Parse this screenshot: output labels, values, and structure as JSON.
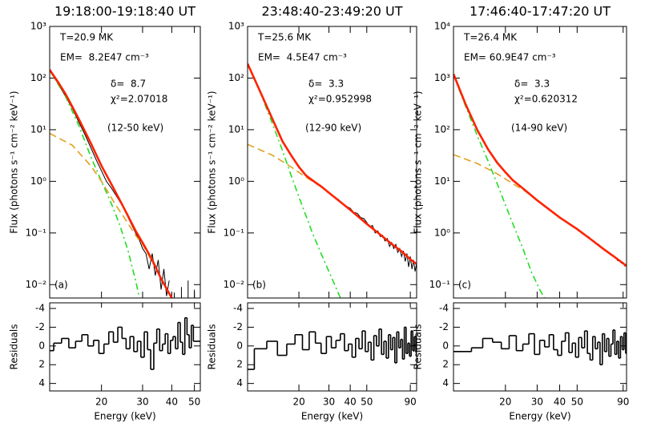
{
  "chart_data": [
    {
      "type": "line",
      "title": "19:18:00-19:18:40 UT",
      "panel_label": "(a)",
      "annotations": [
        "T=20.9 MK",
        "EM=  8.2E47 cm⁻³",
        "δ=  8.7",
        "χ²=2.07018",
        "(12-50 keV)"
      ],
      "ylabel": "Flux (photons s⁻¹ cm⁻² keV⁻¹)",
      "xlabel": "Energy (keV)",
      "log_x": true,
      "log_y": true,
      "xlim": [
        12,
        53
      ],
      "xticks": [
        20,
        30,
        40,
        50
      ],
      "ylim": [
        0.0055,
        1000
      ],
      "yticks": [
        {
          "value": 0.01,
          "label": "10⁻²"
        },
        {
          "value": 0.1,
          "label": "10⁻¹"
        },
        {
          "value": 1,
          "label": "10⁰"
        },
        {
          "value": 10,
          "label": "10¹"
        },
        {
          "value": 100,
          "label": "10²"
        },
        {
          "value": 1000,
          "label": "10³"
        }
      ],
      "series": [
        {
          "color": "#000000",
          "style": "data",
          "x": [
            12,
            13,
            14,
            15,
            16,
            17,
            18,
            19,
            20,
            21,
            22,
            23,
            24,
            25,
            26,
            27,
            28,
            29,
            30,
            31,
            32,
            33,
            34,
            35,
            36,
            37,
            38,
            39,
            40,
            41,
            42,
            43,
            44,
            45,
            46,
            47,
            48,
            49,
            50
          ],
          "values": [
            140,
            80,
            45,
            26,
            14,
            8,
            4.5,
            2.6,
            1.6,
            1.0,
            0.75,
            0.55,
            0.4,
            0.3,
            0.2,
            0.14,
            0.1,
            0.075,
            0.05,
            0.04,
            0.02,
            0.04,
            0.015,
            0.03,
            0.008,
            0.02,
            0.006,
            0.012,
            null,
            0.007,
            null,
            null,
            0.009,
            null,
            null,
            0.012,
            null,
            null,
            0.008
          ]
        },
        {
          "color": "#22dd22",
          "style": "dash-dot",
          "x": [
            12,
            14,
            16,
            18,
            20,
            22,
            24,
            26,
            28,
            29
          ],
          "values": [
            140,
            45,
            12,
            3,
            1.0,
            0.38,
            0.14,
            0.045,
            0.012,
            0.0058
          ]
        },
        {
          "color": "#e0a020",
          "style": "dashed",
          "x": [
            12,
            15,
            18,
            20,
            23,
            25,
            28,
            30,
            35,
            40
          ],
          "values": [
            8.5,
            5,
            2,
            1.0,
            0.35,
            0.2,
            0.09,
            0.06,
            0.017,
            0.0055
          ]
        },
        {
          "color": "#ff2200",
          "style": "total",
          "x": [
            12,
            13,
            14,
            15,
            16,
            18,
            20,
            22,
            25,
            28,
            30,
            33,
            36,
            40
          ],
          "values": [
            145,
            85,
            50,
            28,
            16,
            5.5,
            2.0,
            0.9,
            0.3,
            0.11,
            0.065,
            0.03,
            0.013,
            0.0055
          ]
        }
      ],
      "residuals": {
        "type": "step",
        "ylabel": "Residuals",
        "ylim": [
          4.8,
          -4.6
        ],
        "yticks": [
          -4,
          -2,
          0,
          2,
          4
        ],
        "x": [
          12,
          13,
          14,
          15,
          16,
          17,
          18,
          19,
          20,
          21,
          22,
          23,
          24,
          25,
          26,
          27,
          28,
          29,
          30,
          31,
          32,
          33,
          34,
          35,
          36,
          37,
          38,
          39,
          40,
          41,
          42,
          43,
          44,
          45,
          46,
          47,
          48,
          49,
          50
        ],
        "values": [
          0.5,
          -0.3,
          -0.8,
          0.2,
          -0.5,
          -1.2,
          0.0,
          -0.6,
          0.8,
          -0.2,
          -1.5,
          -0.4,
          -2.0,
          -0.8,
          0.3,
          -1.0,
          0.6,
          -0.5,
          1.2,
          -1.5,
          0.4,
          2.5,
          -0.3,
          -1.8,
          0.5,
          -0.2,
          -1.3,
          0.8,
          -0.6,
          -1.0,
          0.3,
          -2.5,
          -0.4,
          0.9,
          -3.0,
          -1.2,
          0.2,
          -2.2,
          -0.5
        ]
      }
    },
    {
      "type": "line",
      "title": "23:48:40-23:49:20 UT",
      "panel_label": "(b)",
      "annotations": [
        "T=25.6 MK",
        "EM=  4.5E47 cm⁻³",
        "δ=  3.3",
        "χ²=0.952998",
        "(12-90 keV)"
      ],
      "ylabel": "Flux (photons s⁻¹ cm⁻² keV⁻¹)",
      "xlabel": "Energy (keV)",
      "log_x": true,
      "log_y": true,
      "xlim": [
        10,
        98
      ],
      "xticks": [
        20,
        30,
        40,
        50,
        90
      ],
      "ylim": [
        0.0055,
        1000
      ],
      "yticks": [
        {
          "value": 0.01,
          "label": "10⁻²"
        },
        {
          "value": 0.1,
          "label": "10⁻¹"
        },
        {
          "value": 1,
          "label": "10⁰"
        },
        {
          "value": 10,
          "label": "10¹"
        },
        {
          "value": 100,
          "label": "10²"
        },
        {
          "value": 1000,
          "label": "10³"
        }
      ],
      "series": [
        {
          "color": "#000000",
          "style": "data",
          "x": [
            10,
            12,
            14,
            16,
            18,
            20,
            22,
            24,
            26,
            28,
            30,
            32,
            34,
            36,
            38,
            40,
            42,
            44,
            46,
            48,
            50,
            52,
            54,
            56,
            58,
            60,
            62,
            64,
            66,
            68,
            70,
            72,
            74,
            76,
            78,
            80,
            82,
            84,
            86,
            88,
            90,
            92,
            94,
            96,
            98
          ],
          "values": [
            185,
            50,
            16,
            6.2,
            3.1,
            1.9,
            1.35,
            1.05,
            0.85,
            0.72,
            0.6,
            0.5,
            0.45,
            0.37,
            0.33,
            0.3,
            0.25,
            0.24,
            0.2,
            0.19,
            0.16,
            0.13,
            0.14,
            0.1,
            0.11,
            0.085,
            0.09,
            0.07,
            0.078,
            0.055,
            0.065,
            0.05,
            0.06,
            0.042,
            0.05,
            0.035,
            0.045,
            0.028,
            0.04,
            0.022,
            0.035,
            0.02,
            0.03,
            0.018,
            0.026
          ]
        },
        {
          "color": "#22dd22",
          "style": "dash-dot",
          "x": [
            10,
            12,
            14,
            16,
            18,
            20,
            24,
            28,
            32,
            35
          ],
          "values": [
            185,
            48,
            13,
            4,
            1.3,
            0.5,
            0.1,
            0.03,
            0.011,
            0.0055
          ]
        },
        {
          "color": "#e0a020",
          "style": "dashed",
          "x": [
            10,
            14,
            18,
            22,
            26,
            30,
            40,
            60,
            90,
            98
          ],
          "values": [
            5.2,
            3.2,
            1.9,
            1.2,
            0.85,
            0.6,
            0.28,
            0.093,
            0.031,
            0.025
          ]
        },
        {
          "color": "#ff2200",
          "style": "total",
          "x": [
            10,
            12,
            14,
            16,
            18,
            20,
            22,
            25,
            27,
            30,
            35,
            40,
            50,
            60,
            70,
            80,
            90,
            98
          ],
          "values": [
            190,
            50,
            16,
            6,
            3.2,
            1.9,
            1.3,
            0.95,
            0.8,
            0.6,
            0.4,
            0.28,
            0.15,
            0.093,
            0.061,
            0.044,
            0.031,
            0.025
          ]
        }
      ],
      "residuals": {
        "type": "step",
        "ylabel": "Residuals",
        "ylim": [
          4.8,
          -4.6
        ],
        "yticks": [
          -4,
          -2,
          0,
          2,
          4
        ],
        "x": [
          10,
          12,
          14,
          16,
          18,
          20,
          22,
          24,
          26,
          28,
          30,
          32,
          34,
          36,
          38,
          40,
          42,
          44,
          46,
          48,
          50,
          52,
          54,
          56,
          58,
          60,
          62,
          64,
          66,
          68,
          70,
          72,
          74,
          76,
          78,
          80,
          82,
          84,
          86,
          88,
          90,
          92,
          94,
          96,
          98
        ],
        "values": [
          2.5,
          0.3,
          -0.5,
          1.0,
          -0.2,
          -1.2,
          0.4,
          -1.5,
          -0.3,
          0.8,
          -1.0,
          0.2,
          -0.6,
          -1.3,
          0.5,
          -0.2,
          1.2,
          -0.8,
          0.3,
          -1.6,
          0.6,
          -0.4,
          1.5,
          -1.1,
          0.0,
          -1.8,
          0.9,
          -0.5,
          1.3,
          -1.2,
          0.4,
          -0.9,
          1.8,
          -1.5,
          0.2,
          -0.7,
          1.4,
          -2.0,
          0.8,
          -0.3,
          1.1,
          -1.6,
          0.5,
          -1.0,
          0.7
        ]
      }
    },
    {
      "type": "line",
      "title": "17:46:40-17:47:20 UT",
      "panel_label": "(c)",
      "annotations": [
        "T=26.4 MK",
        "EM= 60.9E47 cm⁻³",
        "δ=  3.3",
        "χ²=0.620312",
        "(14-90 keV)"
      ],
      "ylabel": "Flux (photons s⁻¹ cm⁻² keV⁻¹)",
      "xlabel": "Energy (keV)",
      "log_x": true,
      "log_y": true,
      "xlim": [
        10.3,
        94
      ],
      "xticks": [
        20,
        30,
        40,
        50,
        90
      ],
      "ylim": [
        0.055,
        10000
      ],
      "yticks": [
        {
          "value": 0.1,
          "label": "10⁻¹"
        },
        {
          "value": 1,
          "label": "10⁰"
        },
        {
          "value": 10,
          "label": "10¹"
        },
        {
          "value": 100,
          "label": "10²"
        },
        {
          "value": 1000,
          "label": "10³"
        },
        {
          "value": 10000,
          "label": "10⁴"
        }
      ],
      "series": [
        {
          "color": "#000000",
          "style": "data",
          "x": [
            12,
            14,
            16,
            18,
            20,
            22,
            24,
            26,
            28,
            30,
            32,
            34,
            36,
            38,
            40,
            42,
            44,
            46,
            48,
            50,
            52,
            54,
            56,
            58,
            60,
            62,
            64,
            66,
            68,
            70,
            72,
            74,
            76,
            78,
            80,
            82,
            84,
            86,
            88,
            90,
            92,
            94
          ],
          "values": [
            310,
            95,
            42,
            23,
            15,
            10.5,
            8,
            6.6,
            5.2,
            4.3,
            3.6,
            3.1,
            2.6,
            2.3,
            2.0,
            1.75,
            1.6,
            1.4,
            1.3,
            1.18,
            1.05,
            0.98,
            0.88,
            0.84,
            0.74,
            0.7,
            0.63,
            0.6,
            0.53,
            0.5,
            0.46,
            0.44,
            0.39,
            0.38,
            0.34,
            0.33,
            0.29,
            0.3,
            0.26,
            0.27,
            0.23,
            0.25
          ]
        },
        {
          "color": "#22dd22",
          "style": "dash-dot",
          "x": [
            10.3,
            12,
            14,
            16,
            18,
            20,
            22,
            25,
            28,
            31,
            33
          ],
          "values": [
            1150,
            290,
            75,
            25,
            9,
            3.5,
            1.5,
            0.5,
            0.17,
            0.08,
            0.055
          ]
        },
        {
          "color": "#e0a020",
          "style": "dashed",
          "x": [
            10.3,
            14,
            18,
            22,
            26,
            30,
            40,
            60,
            94
          ],
          "values": [
            33,
            22,
            14,
            9,
            6.3,
            4.2,
            2.0,
            0.74,
            0.23
          ]
        },
        {
          "color": "#ff2200",
          "style": "total",
          "x": [
            10.3,
            12,
            14,
            16,
            18,
            20,
            22,
            25,
            30,
            40,
            50,
            60,
            70,
            80,
            94
          ],
          "values": [
            1200,
            317,
            97,
            42,
            23,
            15,
            10.5,
            7.3,
            4.3,
            2.0,
            1.19,
            0.74,
            0.49,
            0.35,
            0.23
          ]
        }
      ],
      "residuals": {
        "type": "step",
        "ylabel": "Residuals",
        "ylim": [
          4.8,
          -4.6
        ],
        "yticks": [
          -4,
          -2,
          0,
          2,
          4
        ],
        "x": [
          12,
          14,
          16,
          18,
          20,
          22,
          24,
          26,
          28,
          30,
          32,
          34,
          36,
          38,
          40,
          42,
          44,
          46,
          48,
          50,
          52,
          54,
          56,
          58,
          60,
          62,
          64,
          66,
          68,
          70,
          72,
          74,
          76,
          78,
          80,
          82,
          84,
          86,
          88,
          90,
          92,
          94
        ],
        "values": [
          0.6,
          0.2,
          -0.8,
          -0.4,
          0.3,
          -1.1,
          0.5,
          -0.2,
          -1.3,
          0.9,
          -0.6,
          0.1,
          -1.2,
          0.4,
          1.0,
          -0.5,
          -1.4,
          0.7,
          -0.3,
          1.2,
          -0.9,
          0.2,
          -1.6,
          0.8,
          1.5,
          -1.0,
          0.3,
          -0.4,
          2.0,
          -1.3,
          0.6,
          -0.8,
          1.1,
          -0.2,
          -1.7,
          0.9,
          -0.5,
          1.3,
          -1.0,
          0.4,
          -1.4,
          0.8
        ]
      }
    }
  ]
}
